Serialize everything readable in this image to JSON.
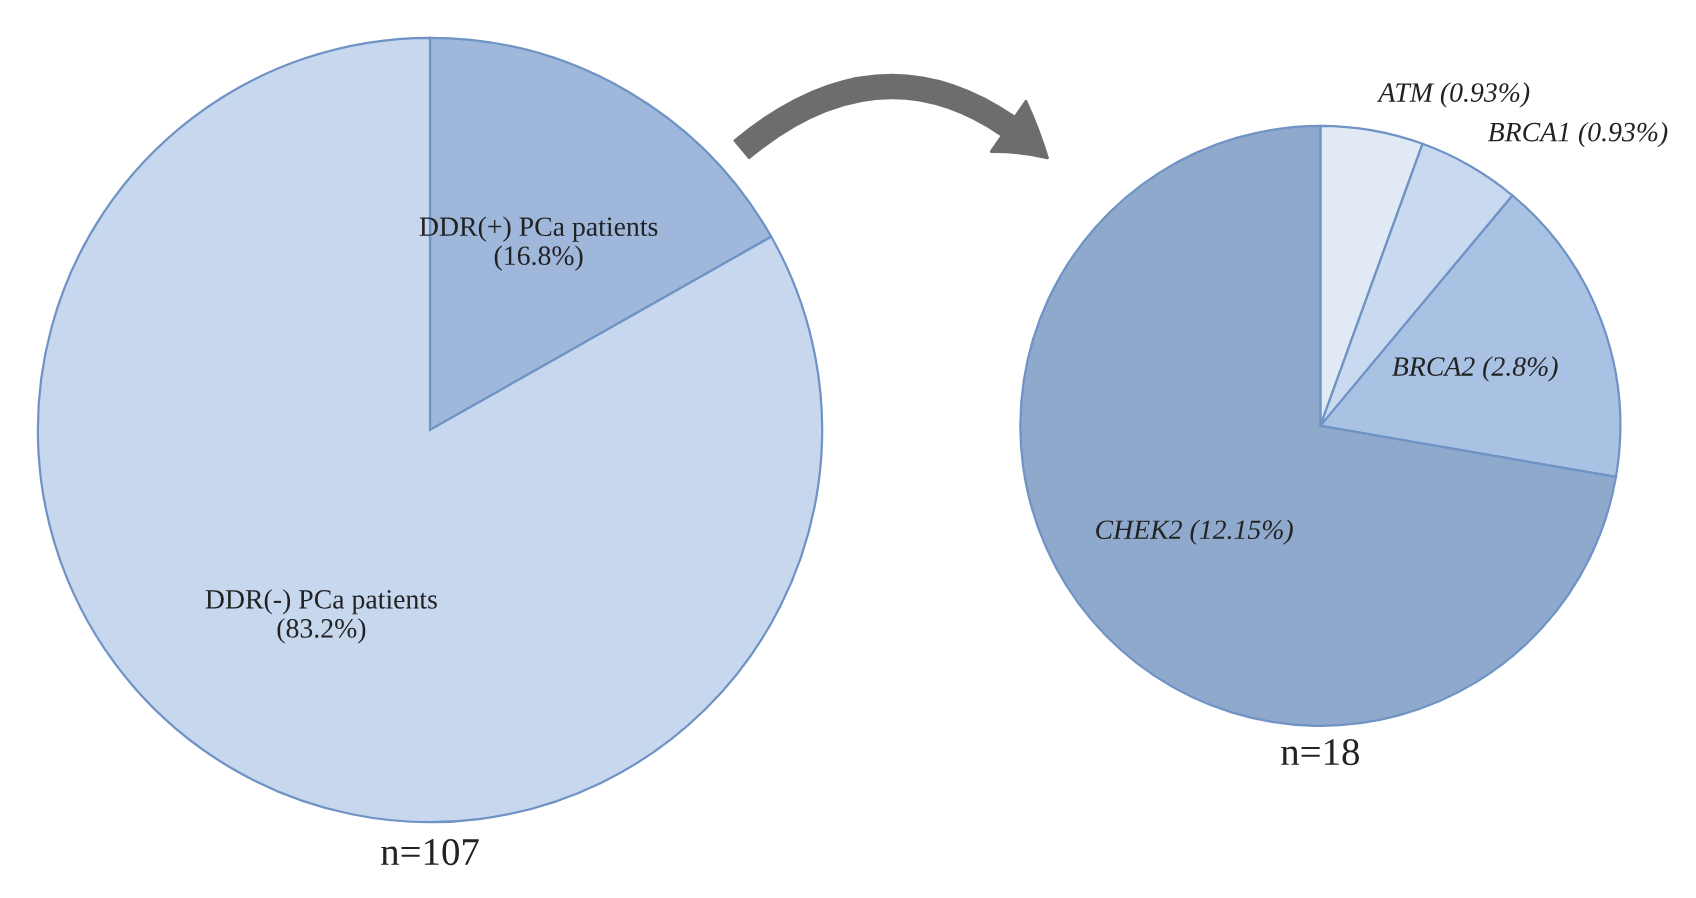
{
  "chart_data": [
    {
      "type": "pie",
      "categories": [
        "DDR(+) PCa patients",
        "DDR(-) PCa patients"
      ],
      "values": [
        16.8,
        83.2
      ],
      "value_labels": [
        "(16.8%)",
        "(83.2%)"
      ],
      "colors": [
        "#9fb7da",
        "#c6d7ee"
      ],
      "xlabel": "n=107"
    },
    {
      "type": "pie",
      "categories": [
        "ATM",
        "BRCA1",
        "BRCA2",
        "CHEK2"
      ],
      "values": [
        0.93,
        0.93,
        2.8,
        12.15
      ],
      "value_labels": [
        "(0.93%)",
        "(0.93%)",
        "(2.8%)",
        "(12.15%)"
      ],
      "colors": [
        "#e1e9f5",
        "#c9d9ef",
        "#a9c1e2",
        "#8fa9cd"
      ],
      "xlabel": "n=18"
    }
  ]
}
